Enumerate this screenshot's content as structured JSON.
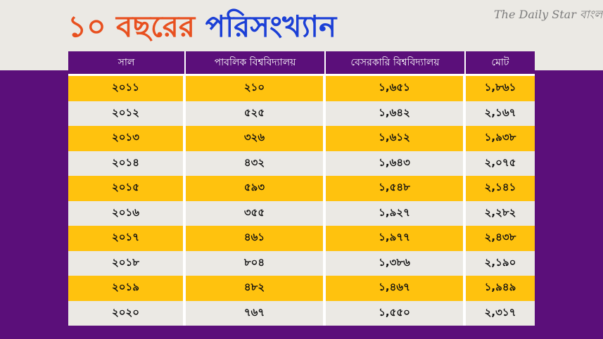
{
  "title": {
    "part1": "১০ বছরের",
    "part2": "পরিসংখ্যান"
  },
  "brand": "The Daily Star বাংলা",
  "colors": {
    "title_orange": "#e8501f",
    "title_blue": "#1b3fd6",
    "band_purple": "#5b0f7a",
    "row_yellow": "#ffc20e",
    "row_grey": "#ebe9e4"
  },
  "table": {
    "headers": [
      "সাল",
      "পাবলিক বিশ্ববিদ্যালয়",
      "বেসরকারি বিশ্ববিদ্যালয়",
      "মোট"
    ],
    "rows": [
      [
        "২০১১",
        "২১০",
        "১,৬৫১",
        "১,৮৬১"
      ],
      [
        "২০১২",
        "৫২৫",
        "১,৬৪২",
        "২,১৬৭"
      ],
      [
        "২০১৩",
        "৩২৬",
        "১,৬১২",
        "১,৯৩৮"
      ],
      [
        "২০১৪",
        "৪৩২",
        "১,৬৪৩",
        "২,০৭৫"
      ],
      [
        "২০১৫",
        "৫৯৩",
        "১,৫৪৮",
        "২,১৪১"
      ],
      [
        "২০১৬",
        "৩৫৫",
        "১,৯২৭",
        "২,২৮২"
      ],
      [
        "২০১৭",
        "৪৬১",
        "১,৯৭৭",
        "২,৪৩৮"
      ],
      [
        "২০১৮",
        "৮০৪",
        "১,৩৮৬",
        "২,১৯০"
      ],
      [
        "২০১৯",
        "৪৮২",
        "১,৪৬৭",
        "১,৯৪৯"
      ],
      [
        "২০২০",
        "৭৬৭",
        "১,৫৫০",
        "২,৩১৭"
      ]
    ]
  }
}
